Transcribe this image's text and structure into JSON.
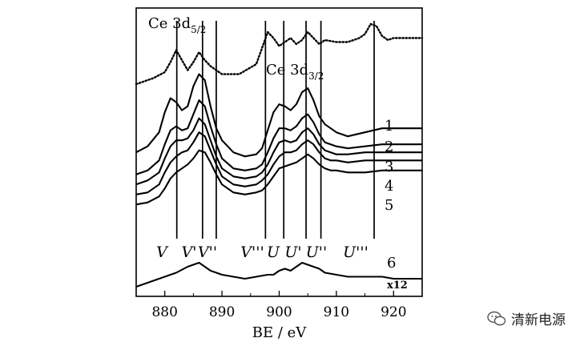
{
  "chart_data": {
    "type": "line",
    "xlabel": "BE / eV",
    "ylabel": "",
    "xlim": [
      875,
      925
    ],
    "x_ticks": [
      "880",
      "890",
      "900",
      "910",
      "920"
    ],
    "grid": false,
    "legend": "none",
    "curve_labels": [
      "1",
      "2",
      "3",
      "4",
      "5",
      "6"
    ],
    "scale_note": "x12",
    "region_labels": {
      "d52": {
        "base": "Ce 3d",
        "sub": "5/2"
      },
      "d32": {
        "base": "Ce 3d",
        "sub": "3/2"
      }
    },
    "peak_markers": [
      {
        "label": "V",
        "be": 882.1
      },
      {
        "label": "V'",
        "be": 886.6
      },
      {
        "label": "V''",
        "be": 889.0
      },
      {
        "label": "V'''",
        "be": 897.6
      },
      {
        "label": "U",
        "be": 900.8
      },
      {
        "label": "U'",
        "be": 904.7
      },
      {
        "label": "U''",
        "be": 907.3
      },
      {
        "label": "U'''",
        "be": 916.6
      }
    ],
    "series": [
      {
        "style": "dotted",
        "x": [
          875,
          878,
          880,
          881,
          882,
          883,
          884,
          885,
          886,
          887,
          888,
          890,
          893,
          896,
          897,
          898,
          899,
          900,
          901,
          902,
          903,
          904,
          905,
          906,
          907,
          908,
          910,
          912,
          914,
          915,
          916,
          917,
          918,
          919,
          920,
          922,
          925
        ],
        "y": [
          0.74,
          0.77,
          0.8,
          0.85,
          0.91,
          0.86,
          0.81,
          0.85,
          0.9,
          0.86,
          0.83,
          0.79,
          0.79,
          0.84,
          0.92,
          1.0,
          0.97,
          0.93,
          0.95,
          0.97,
          0.94,
          0.96,
          1.0,
          0.97,
          0.94,
          0.96,
          0.95,
          0.95,
          0.97,
          0.99,
          1.04,
          1.03,
          0.98,
          0.96,
          0.97,
          0.97,
          0.97
        ]
      },
      {
        "style": "solid",
        "x": [
          875,
          877,
          879,
          880,
          881,
          882,
          883,
          884,
          885,
          886,
          887,
          888,
          889,
          890,
          892,
          894,
          896,
          897,
          898,
          899,
          900,
          901,
          902,
          903,
          904,
          905,
          906,
          907,
          908,
          909,
          910,
          912,
          915,
          918,
          920,
          922,
          925
        ],
        "y": [
          0.4,
          0.43,
          0.5,
          0.6,
          0.67,
          0.65,
          0.61,
          0.63,
          0.73,
          0.79,
          0.76,
          0.63,
          0.52,
          0.46,
          0.4,
          0.38,
          0.39,
          0.42,
          0.51,
          0.6,
          0.64,
          0.63,
          0.61,
          0.64,
          0.7,
          0.72,
          0.66,
          0.58,
          0.54,
          0.52,
          0.5,
          0.48,
          0.5,
          0.52,
          0.52,
          0.52,
          0.52
        ]
      },
      {
        "style": "solid",
        "x": [
          875,
          877,
          879,
          880,
          881,
          882,
          883,
          884,
          885,
          886,
          887,
          888,
          889,
          890,
          892,
          894,
          896,
          897,
          898,
          899,
          900,
          901,
          902,
          903,
          904,
          905,
          906,
          907,
          908,
          909,
          910,
          912,
          915,
          918,
          920,
          922,
          925
        ],
        "y": [
          0.29,
          0.31,
          0.36,
          0.44,
          0.51,
          0.53,
          0.51,
          0.52,
          0.59,
          0.66,
          0.63,
          0.53,
          0.44,
          0.37,
          0.32,
          0.31,
          0.32,
          0.34,
          0.4,
          0.47,
          0.52,
          0.52,
          0.51,
          0.53,
          0.57,
          0.59,
          0.55,
          0.49,
          0.45,
          0.44,
          0.43,
          0.42,
          0.43,
          0.44,
          0.44,
          0.44,
          0.44
        ]
      },
      {
        "style": "solid",
        "x": [
          875,
          877,
          879,
          880,
          881,
          882,
          883,
          884,
          885,
          886,
          887,
          888,
          889,
          890,
          892,
          894,
          896,
          897,
          898,
          899,
          900,
          901,
          902,
          903,
          904,
          905,
          906,
          907,
          908,
          909,
          910,
          912,
          915,
          918,
          920,
          922,
          925
        ],
        "y": [
          0.24,
          0.26,
          0.3,
          0.37,
          0.43,
          0.46,
          0.46,
          0.47,
          0.51,
          0.57,
          0.54,
          0.46,
          0.38,
          0.32,
          0.28,
          0.27,
          0.28,
          0.3,
          0.34,
          0.4,
          0.45,
          0.46,
          0.45,
          0.46,
          0.5,
          0.52,
          0.49,
          0.44,
          0.41,
          0.4,
          0.39,
          0.39,
          0.4,
          0.4,
          0.4,
          0.4,
          0.4
        ]
      },
      {
        "style": "solid",
        "x": [
          875,
          877,
          879,
          880,
          881,
          882,
          883,
          884,
          885,
          886,
          887,
          888,
          889,
          890,
          892,
          894,
          896,
          897,
          898,
          899,
          900,
          901,
          902,
          903,
          904,
          905,
          906,
          907,
          908,
          909,
          910,
          912,
          915,
          918,
          920,
          922,
          925
        ],
        "y": [
          0.19,
          0.2,
          0.24,
          0.3,
          0.35,
          0.38,
          0.4,
          0.41,
          0.45,
          0.5,
          0.48,
          0.41,
          0.34,
          0.28,
          0.24,
          0.23,
          0.24,
          0.26,
          0.29,
          0.34,
          0.38,
          0.4,
          0.4,
          0.41,
          0.44,
          0.46,
          0.44,
          0.4,
          0.37,
          0.36,
          0.36,
          0.35,
          0.36,
          0.36,
          0.36,
          0.36,
          0.36
        ]
      },
      {
        "style": "solid",
        "x": [
          875,
          877,
          879,
          880,
          881,
          882,
          883,
          884,
          885,
          886,
          887,
          888,
          889,
          890,
          892,
          894,
          896,
          897,
          898,
          899,
          900,
          901,
          902,
          903,
          904,
          905,
          906,
          907,
          908,
          909,
          910,
          912,
          915,
          918,
          920,
          922,
          925
        ],
        "y": [
          0.14,
          0.15,
          0.18,
          0.22,
          0.27,
          0.3,
          0.32,
          0.34,
          0.37,
          0.41,
          0.4,
          0.35,
          0.29,
          0.24,
          0.2,
          0.19,
          0.2,
          0.21,
          0.24,
          0.28,
          0.32,
          0.33,
          0.34,
          0.35,
          0.37,
          0.39,
          0.37,
          0.34,
          0.32,
          0.31,
          0.31,
          0.3,
          0.3,
          0.31,
          0.31,
          0.31,
          0.31
        ]
      },
      {
        "style": "solid",
        "x": [
          875,
          877,
          879,
          880,
          882,
          884,
          885,
          886,
          887,
          888,
          889,
          890,
          892,
          894,
          896,
          898,
          899,
          900,
          901,
          902,
          903,
          904,
          905,
          906,
          907,
          908,
          910,
          912,
          915,
          918,
          920,
          922,
          925
        ],
        "y": [
          -0.27,
          -0.25,
          -0.23,
          -0.22,
          -0.2,
          -0.17,
          -0.16,
          -0.15,
          -0.17,
          -0.19,
          -0.2,
          -0.21,
          -0.22,
          -0.23,
          -0.22,
          -0.21,
          -0.21,
          -0.19,
          -0.18,
          -0.19,
          -0.17,
          -0.15,
          -0.16,
          -0.17,
          -0.18,
          -0.2,
          -0.21,
          -0.22,
          -0.22,
          -0.22,
          -0.23,
          -0.23,
          -0.23
        ]
      }
    ]
  },
  "watermark": {
    "text": "清新电源"
  }
}
